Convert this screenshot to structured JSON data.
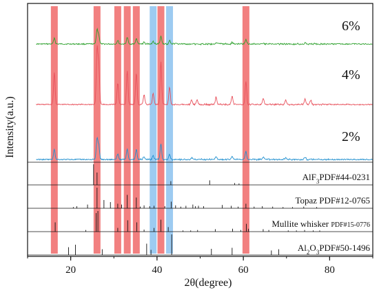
{
  "chart_data": {
    "type": "line",
    "xlabel": "2θ(degree)",
    "ylabel": "Intensity(a.u.)",
    "xlim": [
      10,
      90
    ],
    "x_ticks": [
      "20",
      "40",
      "60",
      "80"
    ],
    "x_tick_values": [
      20,
      40,
      60,
      80
    ],
    "grid": false,
    "highlight_bands": [
      {
        "x": 16.2,
        "color": "#f06a6a"
      },
      {
        "x": 26.1,
        "color": "#f06a6a"
      },
      {
        "x": 30.9,
        "color": "#f06a6a"
      },
      {
        "x": 33.1,
        "color": "#f06a6a"
      },
      {
        "x": 35.2,
        "color": "#f06a6a"
      },
      {
        "x": 39.1,
        "color": "#8cc2ee"
      },
      {
        "x": 40.9,
        "color": "#f06a6a"
      },
      {
        "x": 42.9,
        "color": "#8cc2ee"
      },
      {
        "x": 60.6,
        "color": "#f06a6a"
      }
    ],
    "series": [
      {
        "name": "6%",
        "color": "#2ca02c",
        "peaks": [
          [
            16.2,
            20
          ],
          [
            26.1,
            48
          ],
          [
            26.5,
            28
          ],
          [
            30.9,
            12
          ],
          [
            33.1,
            22
          ],
          [
            35.2,
            18
          ],
          [
            37.0,
            6
          ],
          [
            39.1,
            8
          ],
          [
            40.9,
            25
          ],
          [
            42.9,
            12
          ],
          [
            53.7,
            5
          ],
          [
            57.4,
            5
          ],
          [
            60.6,
            14
          ],
          [
            64.6,
            4
          ],
          [
            74.3,
            5
          ]
        ]
      },
      {
        "name": "4%",
        "color": "#e8505b",
        "peaks": [
          [
            16.2,
            58
          ],
          [
            26.1,
            100
          ],
          [
            26.5,
            72
          ],
          [
            30.9,
            40
          ],
          [
            33.1,
            62
          ],
          [
            35.2,
            58
          ],
          [
            37.0,
            18
          ],
          [
            39.1,
            20
          ],
          [
            40.9,
            78
          ],
          [
            42.9,
            32
          ],
          [
            48.0,
            8
          ],
          [
            49.3,
            9
          ],
          [
            53.7,
            14
          ],
          [
            57.4,
            15
          ],
          [
            60.6,
            42
          ],
          [
            64.6,
            11
          ],
          [
            69.8,
            8
          ],
          [
            74.3,
            10
          ],
          [
            75.6,
            8
          ]
        ]
      },
      {
        "name": "2%",
        "color": "#1f8fcf",
        "peaks": [
          [
            16.2,
            30
          ],
          [
            26.1,
            62
          ],
          [
            26.5,
            40
          ],
          [
            30.9,
            16
          ],
          [
            33.1,
            32
          ],
          [
            35.2,
            30
          ],
          [
            37.0,
            8
          ],
          [
            39.1,
            12
          ],
          [
            40.9,
            44
          ],
          [
            42.9,
            16
          ],
          [
            48.0,
            5
          ],
          [
            53.7,
            8
          ],
          [
            57.4,
            9
          ],
          [
            60.6,
            24
          ],
          [
            64.6,
            7
          ],
          [
            69.8,
            5
          ],
          [
            74.3,
            7
          ]
        ]
      }
    ],
    "references": [
      {
        "label_main": "AlF",
        "label_sub": "3",
        "label_rest": "PDF#44-0231",
        "lines": [
          [
            25.3,
            100
          ],
          [
            26.1,
            60
          ],
          [
            43.2,
            18
          ],
          [
            52.2,
            22
          ],
          [
            58.0,
            9
          ],
          [
            59.0,
            7
          ]
        ]
      },
      {
        "label_main": "Topaz PDF#12-0765",
        "lines": [
          [
            20.6,
            6
          ],
          [
            21.4,
            10
          ],
          [
            23.9,
            18
          ],
          [
            26.1,
            100
          ],
          [
            27.7,
            40
          ],
          [
            29.2,
            30
          ],
          [
            30.9,
            22
          ],
          [
            31.8,
            18
          ],
          [
            33.1,
            65
          ],
          [
            35.2,
            52
          ],
          [
            36.1,
            8
          ],
          [
            37.0,
            14
          ],
          [
            38.3,
            10
          ],
          [
            39.3,
            12
          ],
          [
            41.8,
            10
          ],
          [
            43.3,
            32
          ],
          [
            44.3,
            14
          ],
          [
            45.5,
            8
          ],
          [
            46.7,
            12
          ],
          [
            48.3,
            18
          ],
          [
            48.9,
            10
          ],
          [
            49.6,
            12
          ],
          [
            50.8,
            10
          ],
          [
            55.1,
            16
          ],
          [
            57.2,
            12
          ],
          [
            58.8,
            8
          ],
          [
            60.6,
            22
          ],
          [
            62.5,
            8
          ],
          [
            64.4,
            10
          ],
          [
            66.8,
            8
          ],
          [
            69.2,
            6
          ],
          [
            71.4,
            6
          ],
          [
            74.0,
            8
          ],
          [
            77.0,
            6
          ]
        ]
      },
      {
        "label_main": "Mullite whisker",
        "label_small": "PDF#15-0776",
        "lines": [
          [
            16.4,
            45
          ],
          [
            23.5,
            8
          ],
          [
            25.9,
            90
          ],
          [
            26.3,
            100
          ],
          [
            30.9,
            18
          ],
          [
            33.2,
            55
          ],
          [
            35.3,
            45
          ],
          [
            37.0,
            10
          ],
          [
            39.3,
            18
          ],
          [
            40.9,
            58
          ],
          [
            42.6,
            22
          ],
          [
            46.0,
            6
          ],
          [
            47.8,
            6
          ],
          [
            49.4,
            8
          ],
          [
            53.5,
            12
          ],
          [
            57.5,
            14
          ],
          [
            59.4,
            8
          ],
          [
            60.7,
            38
          ],
          [
            61.2,
            14
          ],
          [
            64.6,
            12
          ],
          [
            65.9,
            8
          ],
          [
            70.4,
            6
          ],
          [
            72.3,
            6
          ],
          [
            74.2,
            8
          ],
          [
            76.2,
            6
          ],
          [
            77.7,
            6
          ]
        ]
      },
      {
        "label_main": "Al",
        "label_sub": "2",
        "label_main2": "O",
        "label_sub2": "3",
        "label_rest": "PDF#50-1496",
        "lines": [
          [
            19.5,
            38
          ],
          [
            21.1,
            50
          ],
          [
            27.3,
            28
          ],
          [
            37.6,
            55
          ],
          [
            38.6,
            25
          ],
          [
            43.4,
            100
          ],
          [
            52.6,
            30
          ],
          [
            57.4,
            35
          ],
          [
            66.5,
            22
          ],
          [
            68.2,
            28
          ]
        ]
      }
    ],
    "conc_labels": [
      "6%",
      "4%",
      "2%"
    ]
  }
}
